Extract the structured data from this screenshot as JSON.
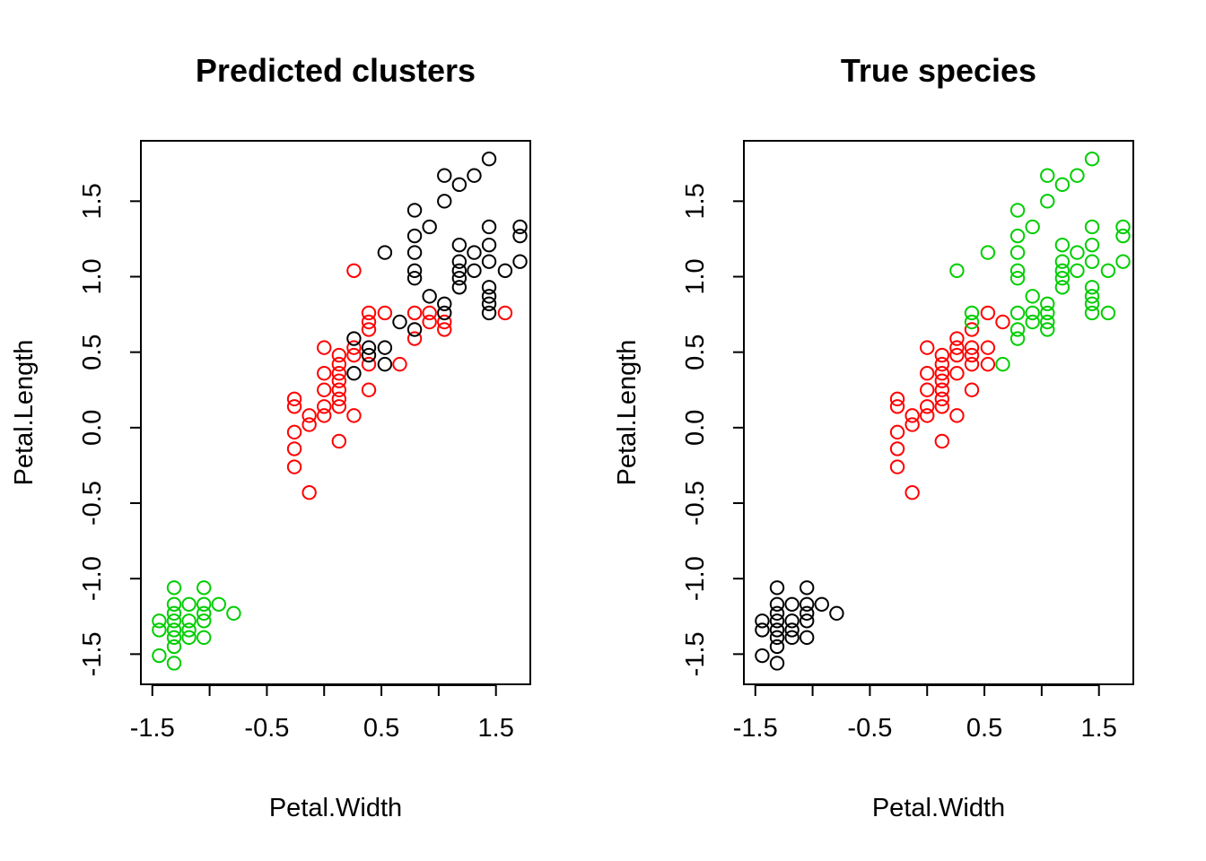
{
  "colors": {
    "palette": [
      "#000000",
      "#DF536B",
      "#61D04F"
    ],
    "cluster": {
      "1": "#000000",
      "2": "#FF0000",
      "3": "#00CD00"
    },
    "species": {
      "setosa": "#000000",
      "versicolor": "#FF0000",
      "virginica": "#00CD00"
    }
  },
  "chart_data": [
    {
      "type": "scatter",
      "title": "Predicted clusters",
      "xlabel": "Petal.Width",
      "ylabel": "Petal.Length",
      "xlim": [
        -1.6,
        1.8
      ],
      "ylim": [
        -1.7,
        1.9
      ],
      "xticks": [
        -1.5,
        -1.0,
        -0.5,
        0.0,
        0.5,
        1.0,
        1.5
      ],
      "xtick_labels": [
        "-1.5",
        "",
        "-0.5",
        "",
        "0.5",
        "",
        "1.5"
      ],
      "yticks": [
        -1.5,
        -1.0,
        -0.5,
        0.0,
        0.5,
        1.0,
        1.5
      ],
      "ytick_labels": [
        "-1.5",
        "-1.0",
        "-0.5",
        "0.0",
        "0.5",
        "1.0",
        "1.5"
      ],
      "grid": false,
      "legend": "none",
      "series": [
        {
          "color": "cluster.3",
          "points": [
            [
              -1.44,
              -1.28
            ],
            [
              -1.44,
              -1.34
            ],
            [
              -1.44,
              -1.51
            ],
            [
              -1.31,
              -1.06
            ],
            [
              -1.31,
              -1.17
            ],
            [
              -1.31,
              -1.23
            ],
            [
              -1.31,
              -1.28
            ],
            [
              -1.31,
              -1.34
            ],
            [
              -1.31,
              -1.39
            ],
            [
              -1.31,
              -1.45
            ],
            [
              -1.31,
              -1.56
            ],
            [
              -1.18,
              -1.17
            ],
            [
              -1.18,
              -1.28
            ],
            [
              -1.18,
              -1.34
            ],
            [
              -1.18,
              -1.39
            ],
            [
              -1.05,
              -1.06
            ],
            [
              -1.05,
              -1.17
            ],
            [
              -1.05,
              -1.23
            ],
            [
              -1.05,
              -1.28
            ],
            [
              -1.05,
              -1.39
            ],
            [
              -0.92,
              -1.17
            ],
            [
              -0.79,
              -1.23
            ]
          ]
        },
        {
          "color": "cluster.2",
          "points": [
            [
              -0.26,
              0.19
            ],
            [
              -0.26,
              0.14
            ],
            [
              -0.26,
              -0.03
            ],
            [
              -0.26,
              -0.14
            ],
            [
              -0.26,
              -0.26
            ],
            [
              -0.13,
              0.08
            ],
            [
              -0.13,
              0.02
            ],
            [
              -0.13,
              -0.43
            ],
            [
              0.0,
              0.53
            ],
            [
              0.0,
              0.36
            ],
            [
              0.0,
              0.25
            ],
            [
              0.0,
              0.14
            ],
            [
              0.0,
              0.08
            ],
            [
              0.13,
              0.48
            ],
            [
              0.13,
              0.42
            ],
            [
              0.13,
              0.36
            ],
            [
              0.13,
              0.31
            ],
            [
              0.13,
              0.25
            ],
            [
              0.13,
              0.19
            ],
            [
              0.13,
              0.14
            ],
            [
              0.13,
              -0.09
            ],
            [
              0.26,
              1.04
            ],
            [
              0.26,
              0.53
            ],
            [
              0.26,
              0.48
            ],
            [
              0.26,
              0.08
            ],
            [
              0.39,
              0.76
            ],
            [
              0.39,
              0.7
            ],
            [
              0.39,
              0.65
            ],
            [
              0.39,
              0.42
            ],
            [
              0.39,
              0.25
            ],
            [
              0.53,
              0.76
            ],
            [
              0.66,
              0.42
            ],
            [
              0.79,
              0.76
            ],
            [
              0.79,
              0.59
            ],
            [
              0.92,
              0.76
            ],
            [
              0.92,
              0.7
            ],
            [
              1.05,
              0.7
            ],
            [
              1.05,
              0.65
            ],
            [
              1.58,
              0.76
            ]
          ]
        },
        {
          "color": "cluster.1",
          "points": [
            [
              0.26,
              0.59
            ],
            [
              0.26,
              0.36
            ],
            [
              0.39,
              0.53
            ],
            [
              0.39,
              0.48
            ],
            [
              0.53,
              1.16
            ],
            [
              0.53,
              0.53
            ],
            [
              0.53,
              0.42
            ],
            [
              0.66,
              0.7
            ],
            [
              0.79,
              1.44
            ],
            [
              0.79,
              1.27
            ],
            [
              0.79,
              1.16
            ],
            [
              0.79,
              1.04
            ],
            [
              0.79,
              0.99
            ],
            [
              0.79,
              0.65
            ],
            [
              0.92,
              1.33
            ],
            [
              0.92,
              0.87
            ],
            [
              1.05,
              1.67
            ],
            [
              1.05,
              1.5
            ],
            [
              1.05,
              0.82
            ],
            [
              1.05,
              0.76
            ],
            [
              1.18,
              1.61
            ],
            [
              1.18,
              1.21
            ],
            [
              1.18,
              1.1
            ],
            [
              1.18,
              1.04
            ],
            [
              1.18,
              0.99
            ],
            [
              1.18,
              0.93
            ],
            [
              1.31,
              1.67
            ],
            [
              1.31,
              1.16
            ],
            [
              1.31,
              1.04
            ],
            [
              1.44,
              1.78
            ],
            [
              1.44,
              1.33
            ],
            [
              1.44,
              1.21
            ],
            [
              1.44,
              1.1
            ],
            [
              1.44,
              0.93
            ],
            [
              1.44,
              0.87
            ],
            [
              1.44,
              0.82
            ],
            [
              1.44,
              0.76
            ],
            [
              1.58,
              1.04
            ],
            [
              1.71,
              1.33
            ],
            [
              1.71,
              1.27
            ],
            [
              1.71,
              1.1
            ]
          ]
        }
      ]
    },
    {
      "type": "scatter",
      "title": "True species",
      "xlabel": "Petal.Width",
      "ylabel": "Petal.Length",
      "xlim": [
        -1.6,
        1.8
      ],
      "ylim": [
        -1.7,
        1.9
      ],
      "xticks": [
        -1.5,
        -1.0,
        -0.5,
        0.0,
        0.5,
        1.0,
        1.5
      ],
      "xtick_labels": [
        "-1.5",
        "",
        "-0.5",
        "",
        "0.5",
        "",
        "1.5"
      ],
      "yticks": [
        -1.5,
        -1.0,
        -0.5,
        0.0,
        0.5,
        1.0,
        1.5
      ],
      "ytick_labels": [
        "-1.5",
        "-1.0",
        "-0.5",
        "0.0",
        "0.5",
        "1.0",
        "1.5"
      ],
      "grid": false,
      "legend": "none",
      "series": [
        {
          "color": "species.setosa",
          "points": [
            [
              -1.44,
              -1.28
            ],
            [
              -1.44,
              -1.34
            ],
            [
              -1.44,
              -1.51
            ],
            [
              -1.31,
              -1.06
            ],
            [
              -1.31,
              -1.17
            ],
            [
              -1.31,
              -1.23
            ],
            [
              -1.31,
              -1.28
            ],
            [
              -1.31,
              -1.34
            ],
            [
              -1.31,
              -1.39
            ],
            [
              -1.31,
              -1.45
            ],
            [
              -1.31,
              -1.56
            ],
            [
              -1.18,
              -1.17
            ],
            [
              -1.18,
              -1.28
            ],
            [
              -1.18,
              -1.34
            ],
            [
              -1.18,
              -1.39
            ],
            [
              -1.05,
              -1.06
            ],
            [
              -1.05,
              -1.17
            ],
            [
              -1.05,
              -1.23
            ],
            [
              -1.05,
              -1.28
            ],
            [
              -1.05,
              -1.39
            ],
            [
              -0.92,
              -1.17
            ],
            [
              -0.79,
              -1.23
            ]
          ]
        },
        {
          "color": "species.versicolor",
          "points": [
            [
              -0.26,
              0.19
            ],
            [
              -0.26,
              0.14
            ],
            [
              -0.26,
              -0.03
            ],
            [
              -0.26,
              -0.14
            ],
            [
              -0.26,
              -0.26
            ],
            [
              -0.13,
              0.08
            ],
            [
              -0.13,
              0.02
            ],
            [
              -0.13,
              -0.43
            ],
            [
              0.0,
              0.53
            ],
            [
              0.0,
              0.36
            ],
            [
              0.0,
              0.25
            ],
            [
              0.0,
              0.14
            ],
            [
              0.0,
              0.08
            ],
            [
              0.13,
              0.48
            ],
            [
              0.13,
              0.42
            ],
            [
              0.13,
              0.36
            ],
            [
              0.13,
              0.31
            ],
            [
              0.13,
              0.25
            ],
            [
              0.13,
              0.19
            ],
            [
              0.13,
              0.14
            ],
            [
              0.13,
              -0.09
            ],
            [
              0.26,
              0.59
            ],
            [
              0.26,
              0.53
            ],
            [
              0.26,
              0.48
            ],
            [
              0.26,
              0.36
            ],
            [
              0.26,
              0.08
            ],
            [
              0.39,
              0.65
            ],
            [
              0.39,
              0.53
            ],
            [
              0.39,
              0.48
            ],
            [
              0.39,
              0.42
            ],
            [
              0.39,
              0.25
            ],
            [
              0.53,
              0.76
            ],
            [
              0.53,
              0.53
            ],
            [
              0.53,
              0.42
            ],
            [
              0.66,
              0.7
            ]
          ]
        },
        {
          "color": "species.virginica",
          "points": [
            [
              0.26,
              1.04
            ],
            [
              0.39,
              0.76
            ],
            [
              0.39,
              0.7
            ],
            [
              0.53,
              1.16
            ],
            [
              0.66,
              0.42
            ],
            [
              0.79,
              1.44
            ],
            [
              0.79,
              1.27
            ],
            [
              0.79,
              1.16
            ],
            [
              0.79,
              1.04
            ],
            [
              0.79,
              0.99
            ],
            [
              0.79,
              0.76
            ],
            [
              0.79,
              0.65
            ],
            [
              0.79,
              0.59
            ],
            [
              0.92,
              1.33
            ],
            [
              0.92,
              0.87
            ],
            [
              0.92,
              0.76
            ],
            [
              0.92,
              0.7
            ],
            [
              1.05,
              1.67
            ],
            [
              1.05,
              1.5
            ],
            [
              1.05,
              0.82
            ],
            [
              1.05,
              0.76
            ],
            [
              1.05,
              0.7
            ],
            [
              1.05,
              0.65
            ],
            [
              1.18,
              1.61
            ],
            [
              1.18,
              1.21
            ],
            [
              1.18,
              1.1
            ],
            [
              1.18,
              1.04
            ],
            [
              1.18,
              0.99
            ],
            [
              1.18,
              0.93
            ],
            [
              1.31,
              1.67
            ],
            [
              1.31,
              1.16
            ],
            [
              1.31,
              1.04
            ],
            [
              1.44,
              1.78
            ],
            [
              1.44,
              1.33
            ],
            [
              1.44,
              1.21
            ],
            [
              1.44,
              1.1
            ],
            [
              1.44,
              0.93
            ],
            [
              1.44,
              0.87
            ],
            [
              1.44,
              0.82
            ],
            [
              1.44,
              0.76
            ],
            [
              1.58,
              1.04
            ],
            [
              1.58,
              0.76
            ],
            [
              1.71,
              1.33
            ],
            [
              1.71,
              1.27
            ],
            [
              1.71,
              1.1
            ]
          ]
        }
      ]
    }
  ]
}
